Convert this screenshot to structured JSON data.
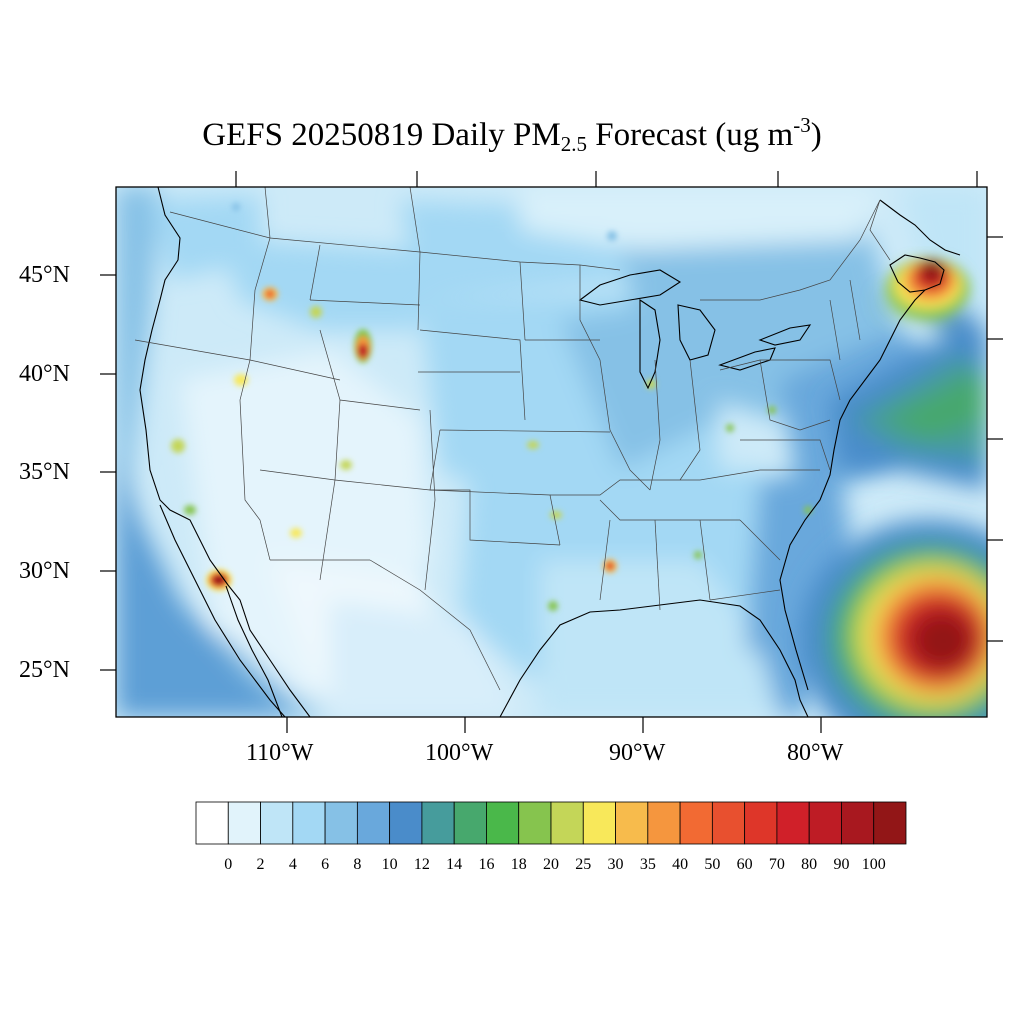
{
  "title": {
    "prefix": "GEFS 20250819 Daily PM",
    "subscript": "2.5",
    "middle": " Forecast (ug m",
    "superscript": "-3",
    "suffix": ")"
  },
  "map": {
    "region": "Contiguous United States",
    "projection": "Lambert conformal",
    "lat_labels": [
      "45°N",
      "40°N",
      "35°N",
      "30°N",
      "25°N"
    ],
    "lon_labels": [
      "110°W",
      "100°W",
      "90°W",
      "80°W"
    ],
    "hotspots": [
      {
        "name": "Nova Scotia",
        "lon": -63.5,
        "lat": 45.2,
        "value": 90
      },
      {
        "name": "Atlantic Ocean plume",
        "lon": -69.0,
        "lat": 27.5,
        "value": 100
      },
      {
        "name": "Northern Baja California",
        "lon": -115.5,
        "lat": 32.4,
        "value": 80
      },
      {
        "name": "Southern Wyoming",
        "lon": -107.2,
        "lat": 41.3,
        "value": 70
      },
      {
        "name": "Central Idaho",
        "lon": -114.5,
        "lat": 45.0,
        "value": 35
      },
      {
        "name": "Northern Louisiana",
        "lon": -92.0,
        "lat": 32.8,
        "value": 30
      },
      {
        "name": "Northeastern Nevada",
        "lon": -115.2,
        "lat": 40.9,
        "value": 25
      },
      {
        "name": "Southwestern Montana",
        "lon": -112.0,
        "lat": 44.6,
        "value": 20
      },
      {
        "name": "Southern Lake Michigan",
        "lon": -87.4,
        "lat": 41.6,
        "value": 20
      }
    ]
  },
  "colorbar": {
    "labels": [
      "0",
      "2",
      "4",
      "6",
      "8",
      "10",
      "12",
      "14",
      "16",
      "18",
      "20",
      "25",
      "30",
      "35",
      "40",
      "50",
      "60",
      "70",
      "80",
      "90",
      "100"
    ],
    "colors": [
      "#ffffff",
      "#e1f3fb",
      "#bfe5f7",
      "#a3d8f4",
      "#86c1e6",
      "#69a8dc",
      "#4a8cca",
      "#469c9c",
      "#47a86d",
      "#4ab84a",
      "#86c44e",
      "#c4d658",
      "#f8e85a",
      "#f7bb4c",
      "#f5963e",
      "#f26a33",
      "#e8502f",
      "#de3629",
      "#d02029",
      "#be1c25",
      "#a8181f",
      "#921617"
    ]
  }
}
